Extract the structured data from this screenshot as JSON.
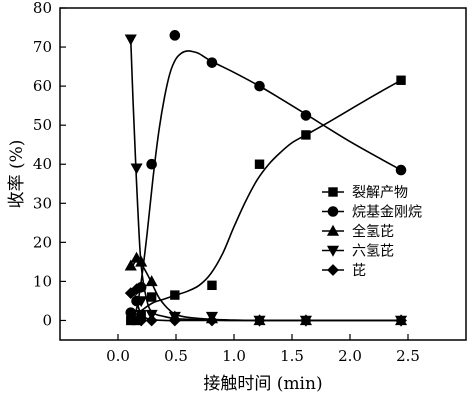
{
  "chart_data": {
    "type": "line",
    "xlabel": "接触时间 (min)",
    "ylabel": "收率 (%)",
    "xlim": [
      -0.5,
      3.0
    ],
    "ylim": [
      -5,
      80
    ],
    "xticks": [
      "0.0",
      "0.5",
      "1.0",
      "1.5",
      "2.0",
      "2.5"
    ],
    "xtick_values": [
      0.0,
      0.5,
      1.0,
      1.5,
      2.0,
      2.5
    ],
    "yticks": [
      "0",
      "10",
      "20",
      "30",
      "40",
      "50",
      "60",
      "70",
      "80"
    ],
    "ytick_values": [
      0,
      10,
      20,
      30,
      40,
      50,
      60,
      70,
      80
    ],
    "grid": false,
    "legend_position": "right",
    "series": [
      {
        "name": "裂解产物",
        "marker": "square",
        "x": [
          0.11,
          0.16,
          0.2,
          0.29,
          0.49,
          0.81,
          1.22,
          1.62,
          2.44
        ],
        "y": [
          0,
          0,
          1.5,
          6,
          6.5,
          9,
          40,
          47.5,
          61.5
        ],
        "fit_x": [
          0.11,
          0.2,
          0.3,
          0.4,
          0.5,
          0.6,
          0.7,
          0.8,
          0.9,
          1.0,
          1.1,
          1.2,
          1.3,
          1.4,
          1.5,
          1.62,
          1.8,
          2.0,
          2.2,
          2.44
        ],
        "fit_y": [
          0.5,
          2.5,
          4.5,
          5.5,
          6.5,
          7.5,
          9,
          12,
          17,
          24,
          30.5,
          36,
          40,
          43,
          45.5,
          47.5,
          50.5,
          54,
          57.5,
          61.5
        ]
      },
      {
        "name": "烷基金刚烷",
        "marker": "circle",
        "x": [
          0.11,
          0.16,
          0.2,
          0.29,
          0.49,
          0.81,
          1.22,
          1.62,
          2.44
        ],
        "y": [
          2,
          5,
          8.5,
          40,
          73,
          66,
          60,
          52.5,
          38.5
        ],
        "fit_x": [
          0.11,
          0.16,
          0.2,
          0.25,
          0.3,
          0.35,
          0.4,
          0.45,
          0.5,
          0.55,
          0.6,
          0.65,
          0.7,
          0.81,
          1.0,
          1.22,
          1.4,
          1.62,
          2.0,
          2.44
        ],
        "fit_y": [
          0,
          3,
          10,
          22,
          36,
          48,
          57,
          63.5,
          67,
          68.5,
          69,
          68.8,
          68.3,
          66.3,
          63.5,
          60,
          56.8,
          52.8,
          45.8,
          38.5
        ]
      },
      {
        "name": "全氢芘",
        "marker": "triangle-up",
        "x": [
          0.11,
          0.16,
          0.2,
          0.29,
          0.49,
          0.81,
          1.22,
          1.62,
          2.44
        ],
        "y": [
          14,
          16,
          15,
          10,
          1,
          0.5,
          0,
          0,
          0
        ],
        "fit_x": [
          0.11,
          0.16,
          0.2,
          0.25,
          0.3,
          0.35,
          0.4,
          0.45,
          0.5,
          0.6,
          0.8,
          1.0,
          1.22,
          1.62,
          2.44
        ],
        "fit_y": [
          13,
          15.5,
          14.5,
          12,
          9,
          6,
          4,
          2.5,
          1.5,
          0.8,
          0.3,
          0.1,
          0,
          0,
          0
        ]
      },
      {
        "name": "六氢芘",
        "marker": "triangle-down",
        "x": [
          0.11,
          0.16,
          0.2,
          0.29,
          0.49,
          0.81,
          1.22,
          1.62,
          2.44
        ],
        "y": [
          72,
          39,
          5,
          1.5,
          1,
          1,
          0,
          0,
          0
        ],
        "fit_x": [
          0.11,
          0.13,
          0.15,
          0.17,
          0.2,
          0.25,
          0.3,
          0.4,
          0.49,
          0.6,
          0.81,
          1.0,
          1.22,
          1.62,
          2.44
        ],
        "fit_y": [
          72,
          56,
          42,
          29,
          14,
          5,
          2,
          1,
          0.5,
          0.3,
          0.1,
          0,
          0,
          0,
          0
        ]
      },
      {
        "name": "芘",
        "marker": "diamond",
        "x": [
          0.11,
          0.16,
          0.2,
          0.29,
          0.49,
          0.81,
          1.22,
          1.62,
          2.44
        ],
        "y": [
          7,
          8,
          0,
          0,
          0,
          0,
          0,
          0,
          0
        ],
        "fit_x": [
          0.11,
          0.14,
          0.17,
          0.2,
          0.25,
          0.3,
          0.4,
          0.49,
          0.81,
          1.22,
          1.62,
          2.44
        ],
        "fit_y": [
          7.5,
          7,
          4,
          1.5,
          0.5,
          0.2,
          0,
          0,
          0,
          0,
          0,
          0
        ]
      }
    ]
  }
}
